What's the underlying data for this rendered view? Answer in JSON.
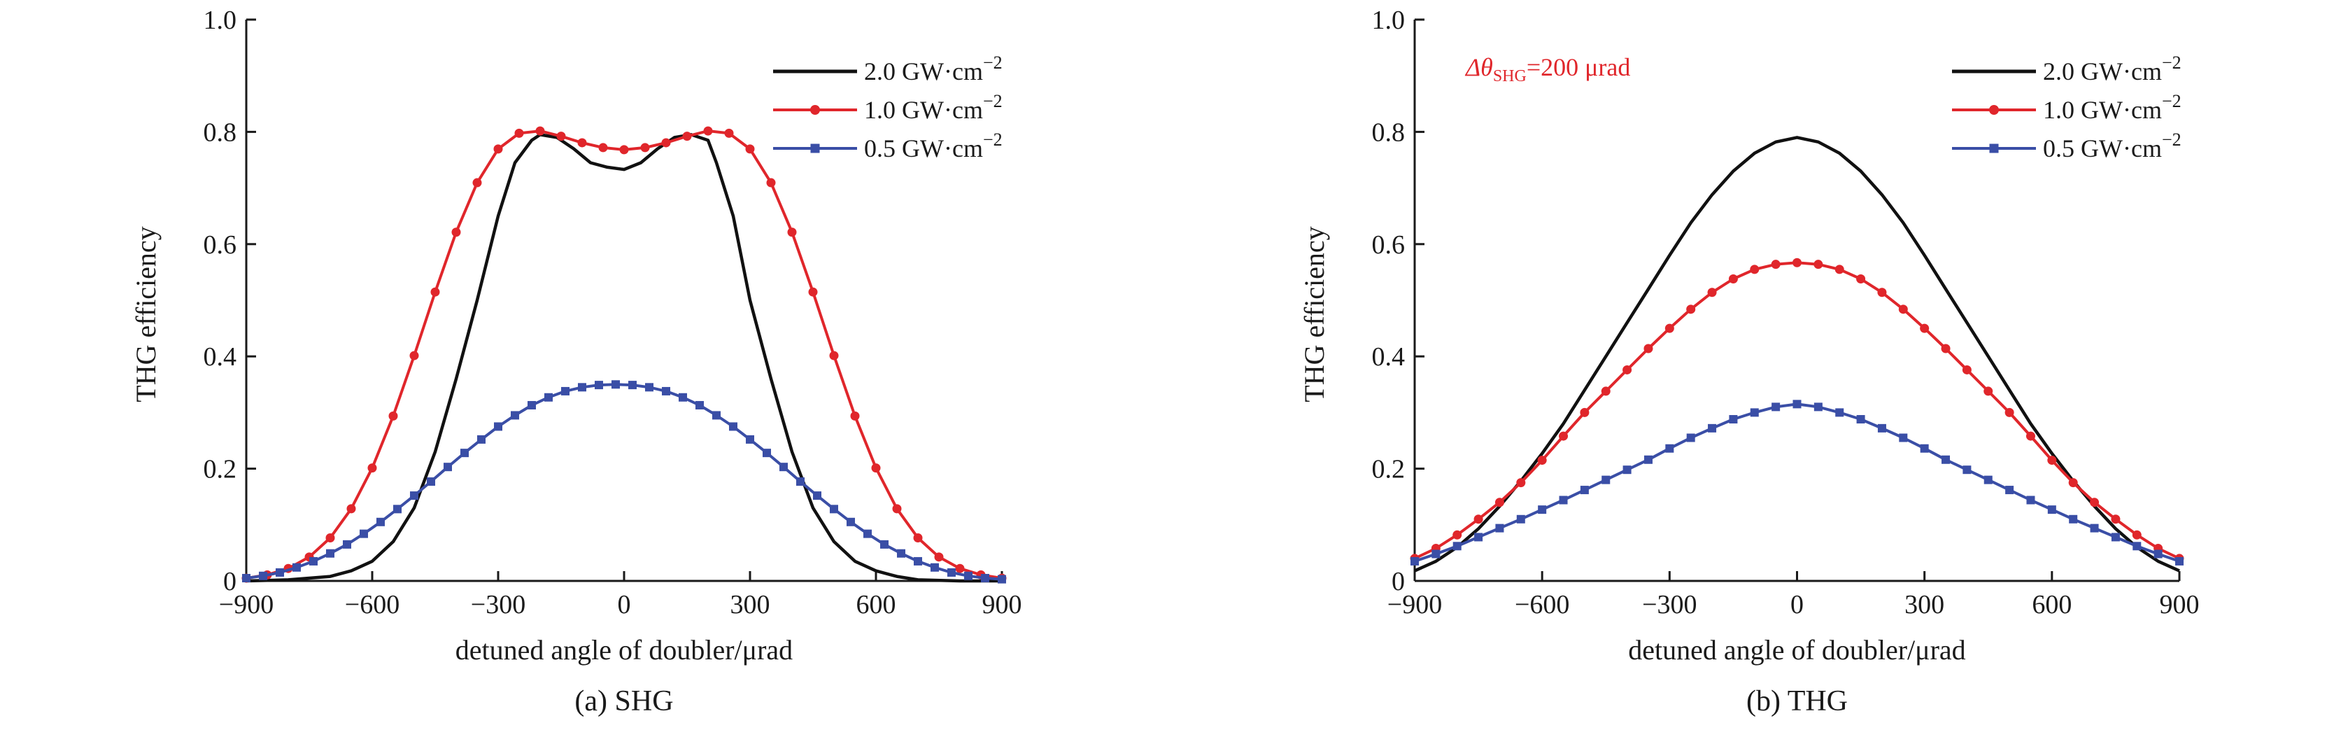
{
  "colors": {
    "black_series": "#111111",
    "red_series": "#e0262b",
    "blue_series": "#3a4ea6",
    "annotation": "#e0262b"
  },
  "chart_data": [
    {
      "type": "line",
      "caption": "(a) SHG",
      "xlabel": "detuned angle of doubler/μrad",
      "ylabel": "THG efficiency",
      "xlim": [
        -900,
        900
      ],
      "ylim": [
        0,
        1.0
      ],
      "xticks": [
        -900,
        -600,
        -300,
        0,
        300,
        600,
        900
      ],
      "xtick_labels": [
        "−900",
        "−600",
        "−300",
        "0",
        "300",
        "600",
        "900"
      ],
      "yticks": [
        0,
        0.2,
        0.4,
        0.6,
        0.8,
        1.0
      ],
      "ytick_labels": [
        "0",
        "0.2",
        "0.4",
        "0.6",
        "0.8",
        "1.0"
      ],
      "legend_position": "top-right",
      "series": [
        {
          "name": "2.0 GW·cm",
          "sup": "−2",
          "color": "#111111",
          "marker": "none",
          "x": [
            -900,
            -800,
            -700,
            -650,
            -600,
            -550,
            -500,
            -450,
            -400,
            -350,
            -300,
            -260,
            -220,
            -200,
            -160,
            -120,
            -80,
            -40,
            0,
            40,
            80,
            120,
            160,
            200,
            220,
            260,
            300,
            350,
            400,
            450,
            500,
            550,
            600,
            650,
            700,
            800,
            900
          ],
          "y": [
            0.0,
            0.002,
            0.008,
            0.018,
            0.035,
            0.07,
            0.13,
            0.23,
            0.36,
            0.5,
            0.65,
            0.745,
            0.785,
            0.795,
            0.79,
            0.77,
            0.745,
            0.737,
            0.733,
            0.745,
            0.77,
            0.79,
            0.795,
            0.785,
            0.745,
            0.65,
            0.5,
            0.36,
            0.23,
            0.13,
            0.07,
            0.035,
            0.018,
            0.008,
            0.002,
            0.0,
            0.0
          ]
        },
        {
          "name": "1.0 GW·cm",
          "sup": "−2",
          "color": "#e0262b",
          "marker": "circle",
          "x": [
            -900,
            -850,
            -800,
            -750,
            -700,
            -650,
            -600,
            -550,
            -500,
            -450,
            -400,
            -350,
            -300,
            -250,
            -200,
            -150,
            -100,
            -50,
            0,
            50,
            100,
            150,
            200,
            250,
            300,
            350,
            400,
            450,
            500,
            550,
            600,
            650,
            700,
            750,
            800,
            850,
            900
          ],
          "y": [
            0.0049,
            0.0108,
            0.0222,
            0.0426,
            0.0767,
            0.1286,
            0.2012,
            0.2938,
            0.4014,
            0.5147,
            0.6213,
            0.7094,
            0.7695,
            0.7975,
            0.8016,
            0.7922,
            0.7806,
            0.7719,
            0.7682,
            0.7719,
            0.7806,
            0.7922,
            0.8016,
            0.7975,
            0.7695,
            0.7094,
            0.6213,
            0.5147,
            0.4014,
            0.2938,
            0.2012,
            0.1286,
            0.0767,
            0.0426,
            0.0222,
            0.0108,
            0.0049
          ]
        },
        {
          "name": "0.5 GW·cm",
          "sup": "−2",
          "color": "#3a4ea6",
          "marker": "square",
          "x": [
            -900,
            -860,
            -820,
            -780,
            -740,
            -700,
            -660,
            -620,
            -580,
            -540,
            -500,
            -460,
            -420,
            -380,
            -340,
            -300,
            -260,
            -220,
            -180,
            -140,
            -100,
            -60,
            -20,
            20,
            60,
            100,
            140,
            180,
            220,
            260,
            300,
            340,
            380,
            420,
            460,
            500,
            540,
            580,
            620,
            660,
            700,
            740,
            780,
            820,
            860,
            900
          ],
          "y": [
            0.005,
            0.009,
            0.015,
            0.024,
            0.035,
            0.049,
            0.065,
            0.084,
            0.105,
            0.128,
            0.152,
            0.177,
            0.203,
            0.228,
            0.252,
            0.275,
            0.295,
            0.313,
            0.327,
            0.338,
            0.345,
            0.349,
            0.35,
            0.349,
            0.345,
            0.338,
            0.327,
            0.313,
            0.295,
            0.275,
            0.252,
            0.228,
            0.203,
            0.177,
            0.152,
            0.128,
            0.105,
            0.084,
            0.065,
            0.049,
            0.035,
            0.024,
            0.015,
            0.009,
            0.005,
            0.003
          ]
        }
      ]
    },
    {
      "type": "line",
      "caption": "(b) THG",
      "xlabel": "detuned angle of doubler/μrad",
      "ylabel": "THG efficiency",
      "annotation": {
        "prefix": "Δθ",
        "subscript": "SHG",
        "suffix": "=200 μrad",
        "position": "top-left"
      },
      "xlim": [
        -900,
        900
      ],
      "ylim": [
        0,
        1.0
      ],
      "xticks": [
        -900,
        -600,
        -300,
        0,
        300,
        600,
        900
      ],
      "xtick_labels": [
        "−900",
        "−600",
        "−300",
        "0",
        "300",
        "600",
        "900"
      ],
      "yticks": [
        0,
        0.2,
        0.4,
        0.6,
        0.8,
        1.0
      ],
      "ytick_labels": [
        "0",
        "0.2",
        "0.4",
        "0.6",
        "0.8",
        "1.0"
      ],
      "legend_position": "top-right",
      "series": [
        {
          "name": "2.0 GW·cm",
          "sup": "−2",
          "color": "#111111",
          "marker": "none",
          "x": [
            -900,
            -850,
            -800,
            -750,
            -700,
            -650,
            -600,
            -550,
            -500,
            -450,
            -400,
            -350,
            -300,
            -250,
            -200,
            -150,
            -100,
            -50,
            0,
            50,
            100,
            150,
            200,
            250,
            300,
            350,
            400,
            450,
            500,
            550,
            600,
            650,
            700,
            750,
            800,
            850,
            900
          ],
          "y": [
            0.018,
            0.035,
            0.06,
            0.093,
            0.133,
            0.178,
            0.227,
            0.28,
            0.34,
            0.4,
            0.46,
            0.52,
            0.58,
            0.638,
            0.688,
            0.73,
            0.762,
            0.782,
            0.79,
            0.782,
            0.762,
            0.73,
            0.688,
            0.638,
            0.58,
            0.52,
            0.46,
            0.4,
            0.34,
            0.28,
            0.227,
            0.178,
            0.133,
            0.093,
            0.06,
            0.035,
            0.018
          ]
        },
        {
          "name": "1.0 GW·cm",
          "sup": "−2",
          "color": "#e0262b",
          "marker": "circle",
          "x": [
            -900,
            -850,
            -800,
            -750,
            -700,
            -650,
            -600,
            -550,
            -500,
            -450,
            -400,
            -350,
            -300,
            -250,
            -200,
            -150,
            -100,
            -50,
            0,
            50,
            100,
            150,
            200,
            250,
            300,
            350,
            400,
            450,
            500,
            550,
            600,
            650,
            700,
            750,
            800,
            850,
            900
          ],
          "y": [
            0.04,
            0.058,
            0.082,
            0.11,
            0.14,
            0.175,
            0.215,
            0.258,
            0.3,
            0.338,
            0.376,
            0.414,
            0.45,
            0.484,
            0.514,
            0.538,
            0.555,
            0.564,
            0.567,
            0.564,
            0.555,
            0.538,
            0.514,
            0.484,
            0.45,
            0.414,
            0.376,
            0.338,
            0.3,
            0.258,
            0.215,
            0.175,
            0.14,
            0.11,
            0.082,
            0.058,
            0.04
          ]
        },
        {
          "name": "0.5 GW·cm",
          "sup": "−2",
          "color": "#3a4ea6",
          "marker": "square",
          "x": [
            -900,
            -850,
            -800,
            -750,
            -700,
            -650,
            -600,
            -550,
            -500,
            -450,
            -400,
            -350,
            -300,
            -250,
            -200,
            -150,
            -100,
            -50,
            0,
            50,
            100,
            150,
            200,
            250,
            300,
            350,
            400,
            450,
            500,
            550,
            600,
            650,
            700,
            750,
            800,
            850,
            900
          ],
          "y": [
            0.035,
            0.048,
            0.062,
            0.078,
            0.094,
            0.11,
            0.127,
            0.144,
            0.162,
            0.18,
            0.198,
            0.216,
            0.236,
            0.255,
            0.272,
            0.288,
            0.3,
            0.31,
            0.315,
            0.31,
            0.3,
            0.288,
            0.272,
            0.255,
            0.236,
            0.216,
            0.198,
            0.18,
            0.162,
            0.144,
            0.127,
            0.11,
            0.094,
            0.078,
            0.062,
            0.048,
            0.035
          ]
        }
      ]
    }
  ]
}
